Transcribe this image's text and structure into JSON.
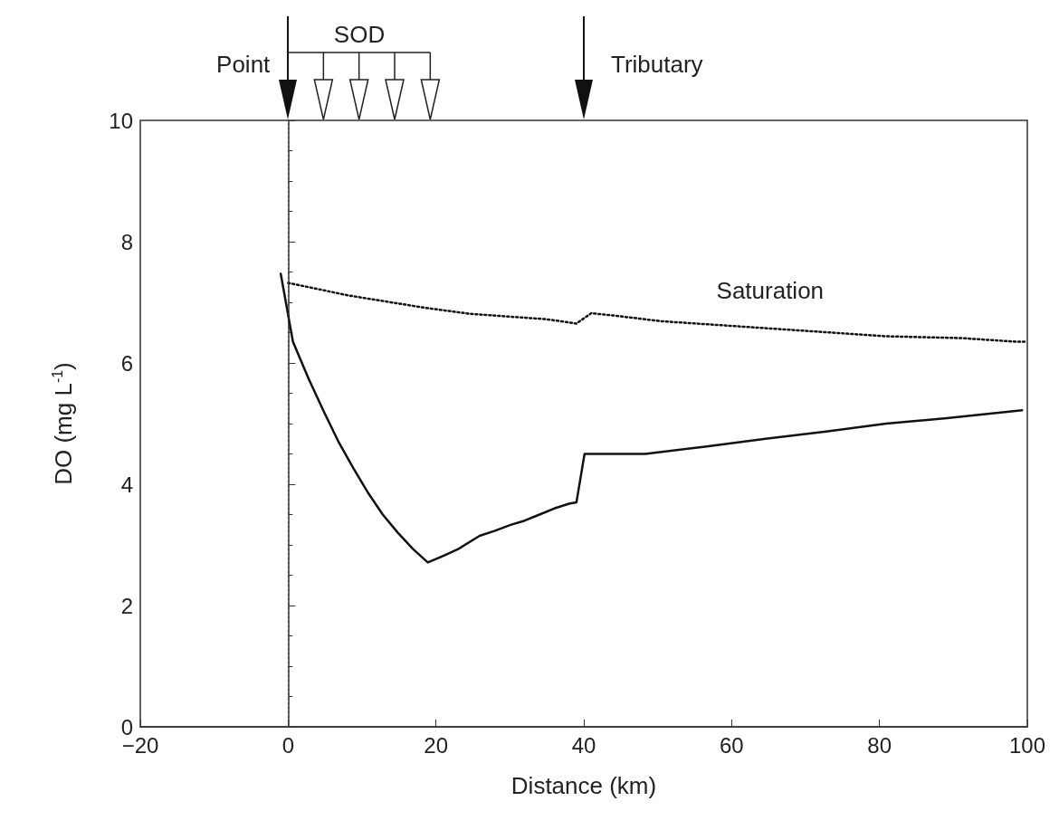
{
  "chart_data": {
    "type": "line",
    "xlabel": "Distance (km)",
    "ylabel": "DO (mg L$^{-1}$)",
    "xlim": [
      -20,
      100
    ],
    "xticks": [
      {
        "value": -20,
        "label": "−20"
      },
      0,
      20,
      40,
      60,
      80,
      100
    ],
    "ylim": [
      0,
      10
    ],
    "yticks": [
      0,
      2,
      4,
      6,
      8,
      10
    ],
    "grid": false,
    "marker": "none",
    "series": [
      {
        "color": "#111111",
        "line_style": "solid",
        "x": [
          -1,
          0.65,
          2.8,
          4.86,
          6.9,
          8.85,
          10.86,
          12.8,
          14.85,
          16.9,
          18.9,
          21,
          23,
          25.9,
          27.9,
          30.1,
          32,
          34,
          36,
          38,
          39,
          40.1,
          48.3,
          56.4,
          64.6,
          72.8,
          80.9,
          89.1,
          99.3
        ],
        "values": [
          7.47,
          6.35,
          5.73,
          5.19,
          4.68,
          4.26,
          3.85,
          3.5,
          3.2,
          2.93,
          2.71,
          2.82,
          2.93,
          3.15,
          3.23,
          3.33,
          3.4,
          3.5,
          3.6,
          3.68,
          3.7,
          4.5,
          4.5,
          4.62,
          4.75,
          4.87,
          5.0,
          5.09,
          5.22
        ]
      },
      {
        "color": "#111111",
        "line_style": "dotted",
        "x": [
          0,
          8.3,
          18.5,
          24.6,
          35,
          39,
          41,
          44.2,
          50.3,
          68.7,
          80.9,
          91.1,
          98.5,
          100
        ],
        "values": [
          7.32,
          7.11,
          6.91,
          6.81,
          6.72,
          6.65,
          6.82,
          6.78,
          6.69,
          6.54,
          6.44,
          6.41,
          6.35,
          6.35
        ]
      }
    ],
    "ref_lines": [
      {
        "axis": "x",
        "value": 0,
        "line_style": "dotted"
      }
    ],
    "annotations": [
      "Point",
      "SOD",
      "Tributary",
      "Saturation"
    ]
  }
}
